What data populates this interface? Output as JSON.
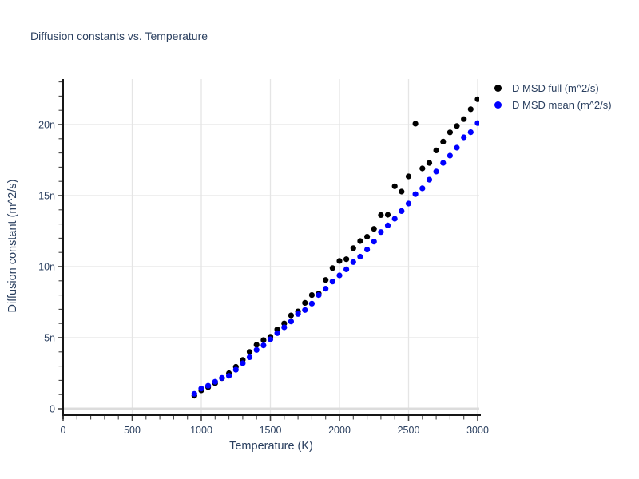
{
  "title": "Diffusion constants vs. Temperature",
  "colors": {
    "text": "#2a3f5f",
    "grid": "#e5e5e5",
    "zero_line": "#dcdcdc",
    "axis_line": "#161616",
    "tick": "#444444",
    "background": "#ffffff",
    "series_full": "#000000",
    "series_mean": "#0000ff"
  },
  "chart_data": {
    "type": "scatter",
    "title": "Diffusion constants vs. Temperature",
    "xlabel": "Temperature (K)",
    "ylabel": "Diffusion constant (m^2/s)",
    "x_ticks": [
      0,
      500,
      1000,
      1500,
      2000,
      2500,
      3000
    ],
    "x_minor_tick_step": 100,
    "y_ticks": [
      0,
      5,
      10,
      15,
      20
    ],
    "y_tick_labels": [
      "0",
      "5n",
      "10n",
      "15n",
      "20n"
    ],
    "y_minor_tick_step": 1,
    "y_unit": "1e-9 m^2/s",
    "xlim": [
      0,
      3010
    ],
    "ylim": [
      -0.45,
      23.2
    ],
    "grid": true,
    "legend_position": "outside-top-right",
    "series": [
      {
        "name": "D MSD full (m^^2/s)",
        "color": "#000000",
        "marker": "circle",
        "x": [
          950,
          1000,
          1050,
          1100,
          1150,
          1200,
          1250,
          1300,
          1350,
          1400,
          1450,
          1500,
          1550,
          1600,
          1650,
          1700,
          1750,
          1800,
          1850,
          1900,
          1950,
          2000,
          2050,
          2100,
          2150,
          2200,
          2250,
          2300,
          2350,
          2400,
          2450,
          2500,
          2550,
          2600,
          2650,
          2700,
          2750,
          2800,
          2850,
          2900,
          2950,
          3000
        ],
        "y": [
          0.92,
          1.3,
          1.52,
          1.8,
          2.15,
          2.5,
          2.95,
          3.44,
          4.0,
          4.5,
          4.83,
          5.07,
          5.58,
          6.0,
          6.57,
          6.85,
          7.45,
          8.0,
          8.1,
          9.06,
          9.9,
          10.4,
          10.52,
          11.3,
          11.8,
          12.1,
          12.66,
          13.63,
          13.65,
          15.66,
          15.28,
          16.35,
          20.06,
          16.91,
          17.3,
          18.18,
          18.8,
          19.45,
          19.9,
          20.38,
          21.08,
          21.78
        ]
      },
      {
        "name": "D MSD mean (m^^2/s)",
        "color": "#0000ff",
        "marker": "circle",
        "x": [
          950,
          1000,
          1050,
          1100,
          1150,
          1200,
          1250,
          1300,
          1350,
          1400,
          1450,
          1500,
          1550,
          1600,
          1650,
          1700,
          1750,
          1800,
          1850,
          1900,
          1950,
          2000,
          2050,
          2100,
          2150,
          2200,
          2250,
          2300,
          2350,
          2400,
          2450,
          2500,
          2550,
          2600,
          2650,
          2700,
          2750,
          2800,
          2850,
          2900,
          2950,
          3000
        ],
        "y": [
          1.05,
          1.42,
          1.62,
          1.9,
          2.17,
          2.32,
          2.75,
          3.2,
          3.63,
          4.14,
          4.46,
          4.89,
          5.32,
          5.73,
          6.14,
          6.67,
          6.95,
          7.4,
          8.0,
          8.45,
          8.95,
          9.38,
          9.81,
          10.32,
          10.7,
          11.2,
          11.76,
          12.43,
          12.9,
          13.37,
          13.91,
          14.44,
          15.1,
          15.51,
          16.12,
          16.69,
          17.3,
          17.81,
          18.37,
          19.1,
          19.46,
          20.1
        ]
      }
    ]
  },
  "legend": {
    "full_label": "D MSD full (m^2/s)",
    "mean_label": "D MSD mean (m^2/s)"
  }
}
